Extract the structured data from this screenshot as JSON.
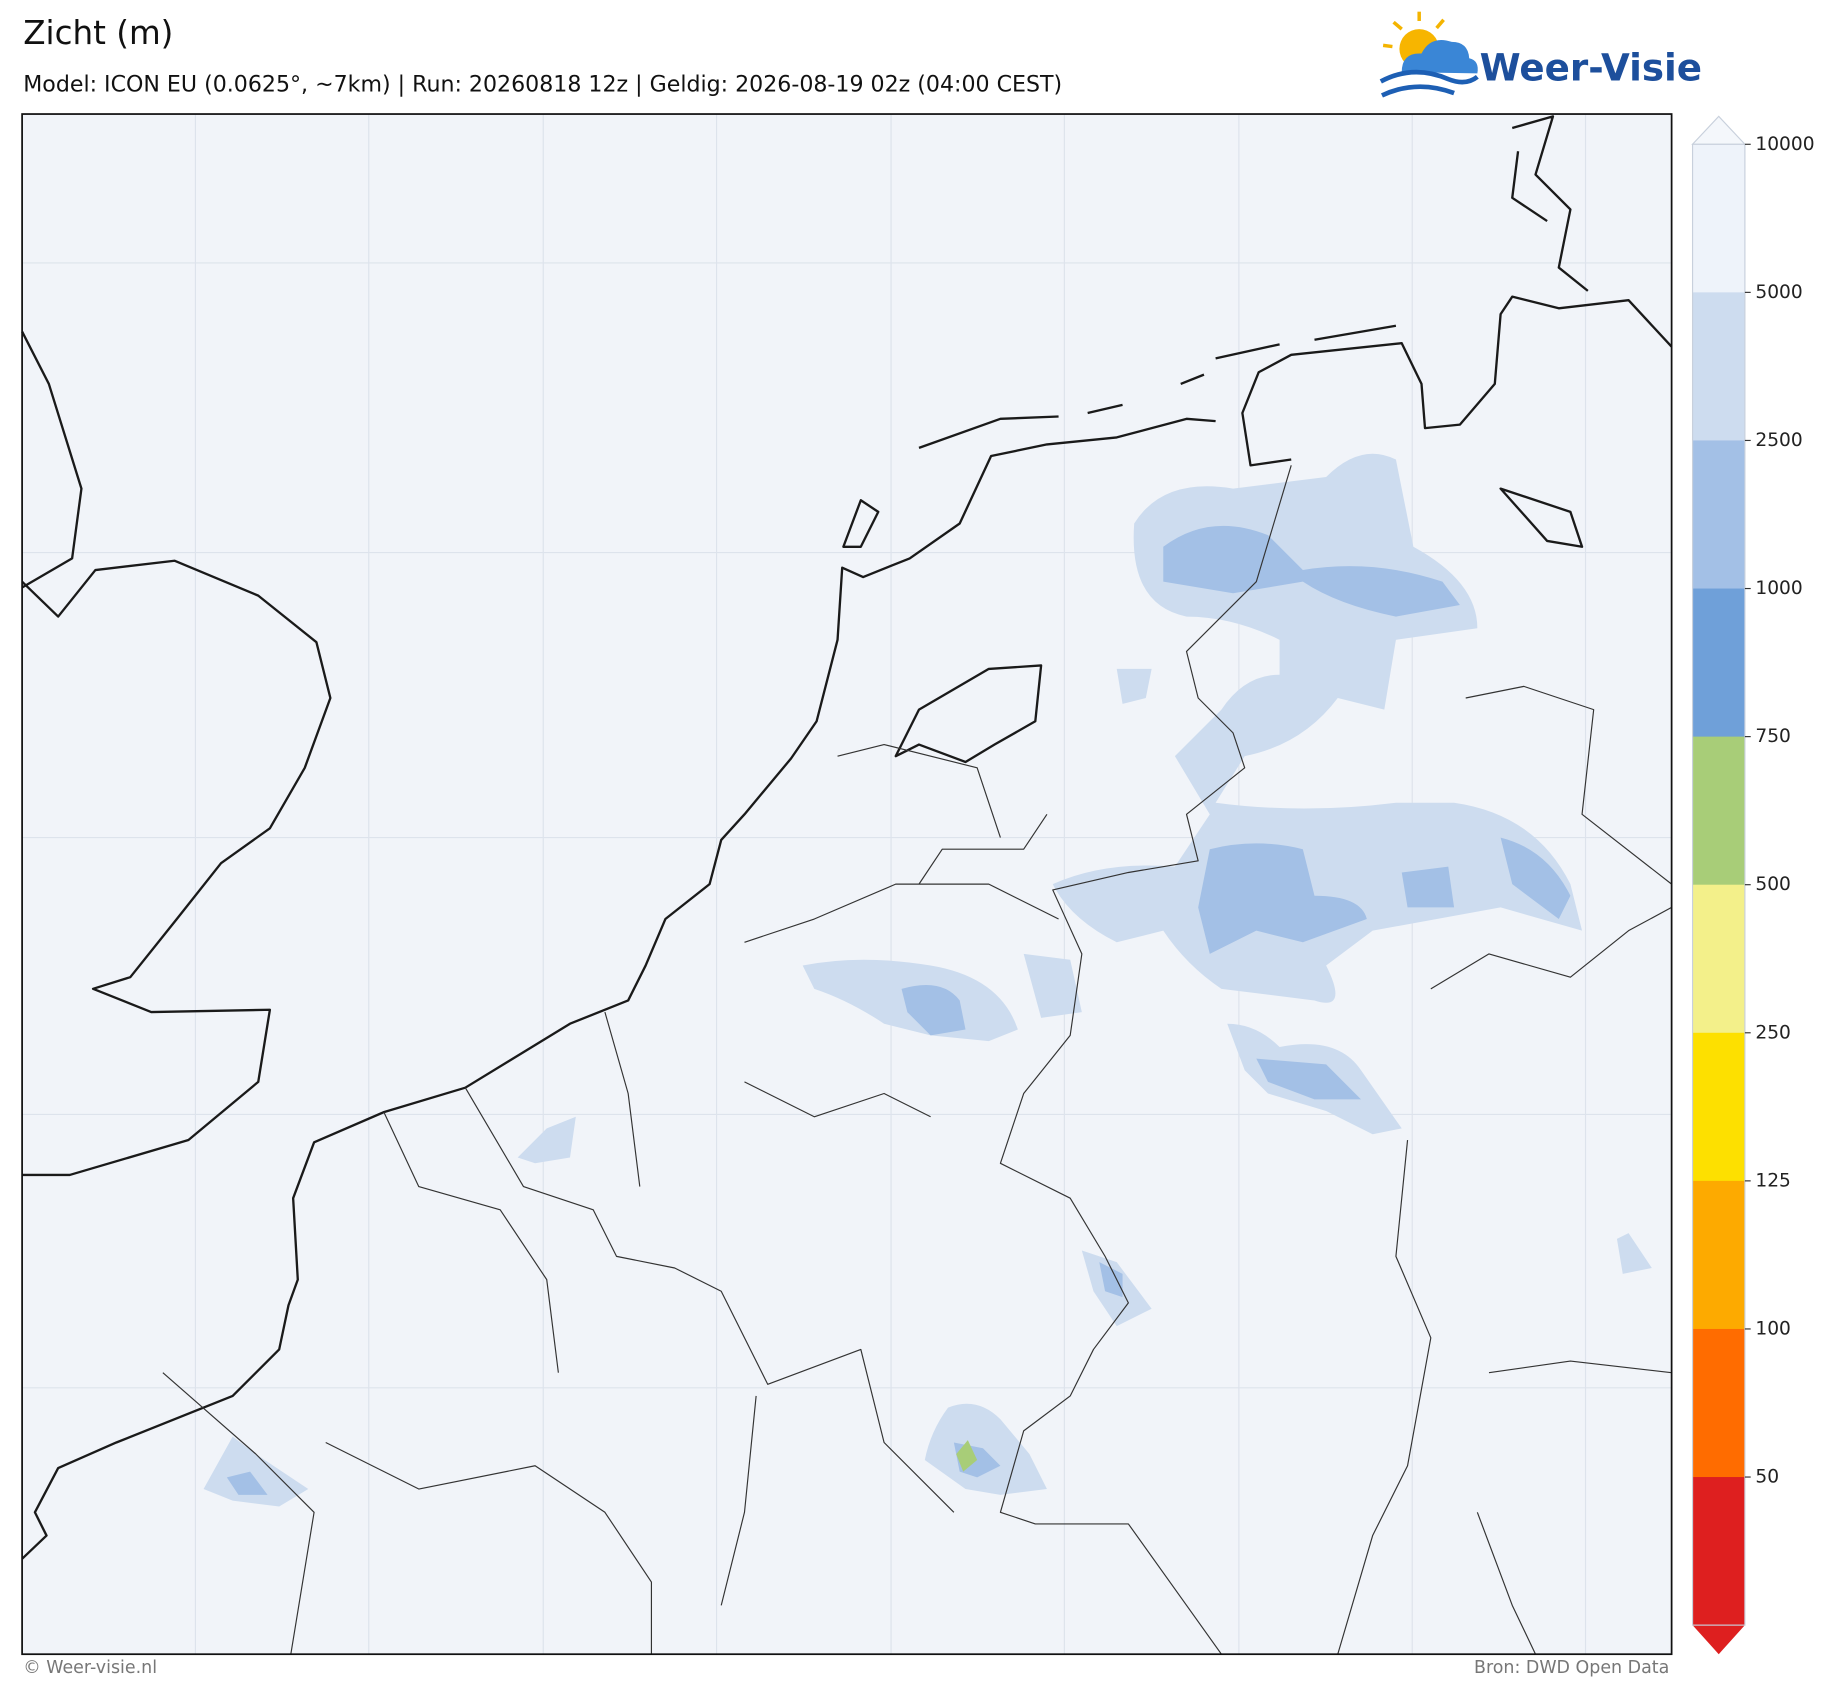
{
  "header": {
    "title": "Zicht (m)",
    "subtitle": "Model: ICON EU (0.0625°, ~7km)  |  Run: 20260818 12z  |  Geldig: 2026-08-19 02z (04:00 CEST)",
    "logo": "Weer-Visie"
  },
  "colorbar": {
    "levels": [
      10000,
      5000,
      2500,
      1000,
      750,
      500,
      250,
      125,
      100,
      50
    ],
    "band_colors": [
      "#eef3fa",
      "#cddcef",
      "#a3c0e6",
      "#6fa0d9",
      "#a8cd78",
      "#f3f08a",
      "#fde000",
      "#fdaa00",
      "#ff6c00"
    ],
    "over_color": "#f4f7fb",
    "under_color": "#de1f1f"
  },
  "footer": {
    "left": "© Weer-visie.nl",
    "right": "Bron: DWD Open Data"
  }
}
